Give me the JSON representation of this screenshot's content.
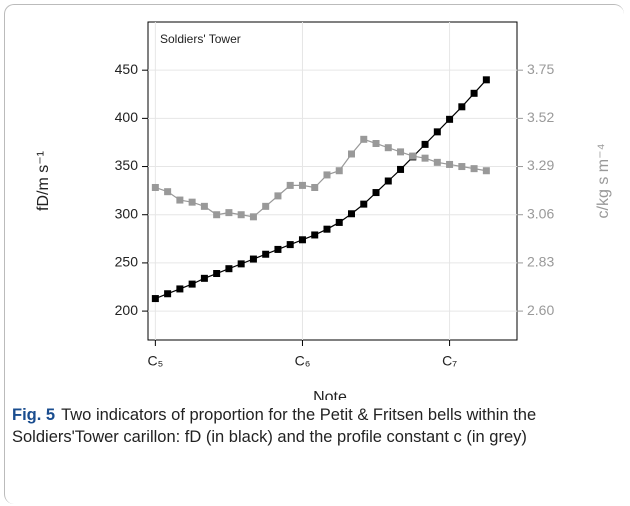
{
  "chart_data": {
    "type": "line",
    "title": "Soldiers' Tower",
    "x_label": "Note",
    "y_label": "fD/m s⁻¹",
    "y2_label": "c/kg s m⁻⁴",
    "x": [
      0,
      1,
      2,
      3,
      4,
      5,
      6,
      7,
      8,
      9,
      10,
      11,
      12,
      13,
      14,
      15,
      16,
      17,
      18,
      19,
      20,
      21,
      22,
      23,
      24,
      25,
      26,
      27
    ],
    "xlim": [
      -0.6,
      29.5
    ],
    "xticks": [
      {
        "value": 0,
        "label": "C₅"
      },
      {
        "value": 12,
        "label": "C₆"
      },
      {
        "value": 24,
        "label": "C₇"
      }
    ],
    "ylim": [
      170,
      500
    ],
    "yticks": [
      200,
      250,
      300,
      350,
      400,
      450
    ],
    "y2lim": [
      2.462,
      3.98
    ],
    "y2ticks": [
      {
        "value": 2.6,
        "label": "2.60"
      },
      2.83,
      3.06,
      3.29,
      3.52,
      3.75
    ],
    "grid": true,
    "series": [
      {
        "name": "fD",
        "color": "#000000",
        "values": [
          213,
          218,
          223,
          228,
          234,
          239,
          244,
          249,
          254,
          259,
          264,
          269,
          274,
          279,
          285,
          292,
          301,
          311,
          323,
          335,
          347,
          360,
          373,
          386,
          399,
          412,
          426,
          440
        ]
      },
      {
        "name": "c",
        "color": "#999999",
        "axis": "y2",
        "values": [
          3.19,
          3.17,
          3.13,
          3.12,
          3.1,
          3.06,
          3.07,
          3.06,
          3.05,
          3.1,
          3.15,
          3.2,
          3.2,
          3.19,
          3.25,
          3.27,
          3.35,
          3.42,
          3.4,
          3.38,
          3.36,
          3.34,
          3.33,
          3.31,
          3.3,
          3.29,
          3.28,
          3.27
        ]
      }
    ]
  },
  "caption": {
    "label": "Fig. 5",
    "text": "Two indicators of proportion for the Petit & Fritsen bells within the Soldiers'Tower carillon: fD (in black) and the profile constant c (in grey)"
  }
}
